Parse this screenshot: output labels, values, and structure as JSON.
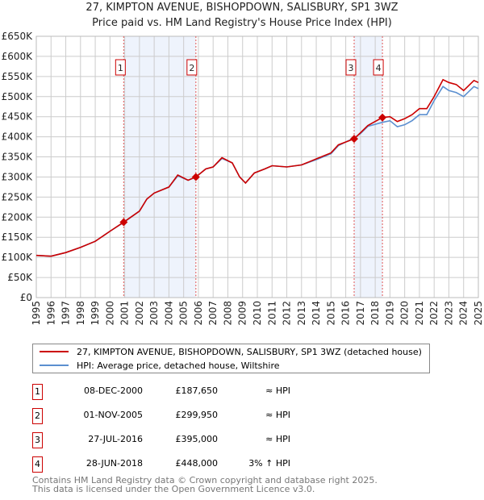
{
  "title": "27, KIMPTON AVENUE, BISHOPDOWN, SALISBURY, SP1 3WZ",
  "subtitle": "Price paid vs. HM Land Registry's House Price Index (HPI)",
  "colors": {
    "property": "#cc0000",
    "hpi": "#5b8fd0",
    "shade": "#eef3fc"
  },
  "chart_data": {
    "type": "line",
    "xlim": [
      1995,
      2025
    ],
    "ylim": [
      0,
      650000
    ],
    "y_ticks": [
      0,
      50000,
      100000,
      150000,
      200000,
      250000,
      300000,
      350000,
      400000,
      450000,
      500000,
      550000,
      600000,
      650000
    ],
    "y_tick_labels": [
      "£0",
      "£50K",
      "£100K",
      "£150K",
      "£200K",
      "£250K",
      "£300K",
      "£350K",
      "£400K",
      "£450K",
      "£500K",
      "£550K",
      "£600K",
      "£650K"
    ],
    "x_ticks": [
      1995,
      1996,
      1997,
      1998,
      1999,
      2000,
      2001,
      2002,
      2003,
      2004,
      2005,
      2006,
      2007,
      2008,
      2009,
      2010,
      2011,
      2012,
      2013,
      2014,
      2015,
      2016,
      2017,
      2018,
      2019,
      2020,
      2021,
      2022,
      2023,
      2024,
      2025
    ],
    "grid": true,
    "series": [
      {
        "name": "27, KIMPTON AVENUE, BISHOPDOWN, SALISBURY, SP1 3WZ (detached house)",
        "x": [
          1995,
          1996,
          1997,
          1998,
          1999,
          2000,
          2000.93,
          2002,
          2002.5,
          2003,
          2004,
          2004.6,
          2005.3,
          2005.83,
          2006.5,
          2007,
          2007.6,
          2008.3,
          2008.8,
          2009.2,
          2009.8,
          2010.5,
          2011,
          2012,
          2013,
          2014,
          2015,
          2015.5,
          2016.57,
          2017,
          2017.5,
          2018.49,
          2019,
          2019.5,
          2020,
          2020.5,
          2021,
          2021.5,
          2022,
          2022.6,
          2023,
          2023.5,
          2024,
          2024.7,
          2025
        ],
        "y": [
          105000,
          103000,
          112000,
          125000,
          140000,
          165000,
          187650,
          215000,
          245000,
          260000,
          275000,
          305000,
          292000,
          299950,
          320000,
          325000,
          348000,
          335000,
          300000,
          285000,
          310000,
          320000,
          328000,
          325000,
          330000,
          345000,
          360000,
          380000,
          395000,
          410000,
          428000,
          448000,
          450000,
          438000,
          445000,
          455000,
          470000,
          470000,
          500000,
          542000,
          535000,
          530000,
          515000,
          540000,
          535000
        ]
      },
      {
        "name": "HPI: Average price, detached house, Wiltshire",
        "x": [
          1995,
          1996,
          1997,
          1998,
          1999,
          2000,
          2000.93,
          2002,
          2002.5,
          2003,
          2004,
          2004.6,
          2005.3,
          2005.83,
          2006.5,
          2007,
          2007.6,
          2008.3,
          2008.8,
          2009.2,
          2009.8,
          2010.5,
          2011,
          2012,
          2013,
          2014,
          2015,
          2015.5,
          2016.57,
          2017,
          2017.5,
          2018.49,
          2019,
          2019.5,
          2020,
          2020.5,
          2021,
          2021.5,
          2022,
          2022.6,
          2023,
          2023.5,
          2024,
          2024.7,
          2025
        ],
        "y": [
          105000,
          103000,
          112000,
          125000,
          140000,
          165000,
          187000,
          215000,
          245000,
          260000,
          275000,
          303000,
          292000,
          300000,
          320000,
          325000,
          346000,
          335000,
          300000,
          285000,
          310000,
          320000,
          328000,
          325000,
          330000,
          343000,
          358000,
          378000,
          397000,
          408000,
          426000,
          436000,
          440000,
          425000,
          430000,
          440000,
          455000,
          455000,
          490000,
          525000,
          515000,
          510000,
          500000,
          525000,
          520000
        ]
      }
    ],
    "sales": [
      {
        "n": "1",
        "x": 2000.93,
        "y": 187650,
        "date": "08-DEC-2000",
        "price": "£187,650",
        "hpi": "≈ HPI"
      },
      {
        "n": "2",
        "x": 2005.83,
        "y": 299950,
        "date": "01-NOV-2005",
        "price": "£299,950",
        "hpi": "≈ HPI"
      },
      {
        "n": "3",
        "x": 2016.57,
        "y": 395000,
        "date": "27-JUL-2016",
        "price": "£395,000",
        "hpi": "≈ HPI"
      },
      {
        "n": "4",
        "x": 2018.49,
        "y": 448000,
        "date": "28-JUN-2018",
        "price": "£448,000",
        "hpi": "3% ↑ HPI"
      }
    ]
  },
  "legend": {
    "property": "27, KIMPTON AVENUE, BISHOPDOWN, SALISBURY, SP1 3WZ (detached house)",
    "hpi": "HPI: Average price, detached house, Wiltshire"
  },
  "footer": {
    "line1": "Contains HM Land Registry data © Crown copyright and database right 2025.",
    "line2": "This data is licensed under the Open Government Licence v3.0."
  }
}
